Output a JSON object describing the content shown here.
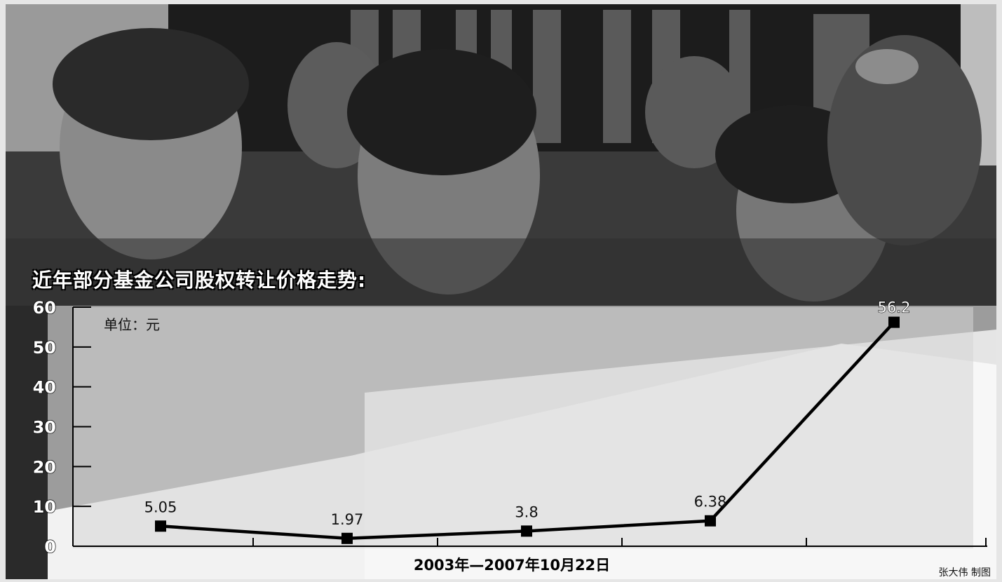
{
  "chart_data": {
    "type": "line",
    "title": "近年部分基金公司股权转让价格走势:",
    "unit_label": "单位：元",
    "xlabel": "2003年—2007年10月22日",
    "ylabel": "",
    "ylim": [
      0,
      60
    ],
    "yticks": [
      "0",
      "10",
      "20",
      "30",
      "40",
      "50",
      "60"
    ],
    "grid": false,
    "series": [
      {
        "values": [
          5.05,
          1.97,
          3.8,
          6.38,
          56.2
        ],
        "labels": [
          "5.05",
          "1.97",
          "3.8",
          "6.38",
          "56.2"
        ]
      }
    ]
  },
  "credit": "张大伟 制图",
  "colors": {
    "line": "#000000",
    "panel": "#d4d4d4",
    "title": "#ffffff"
  }
}
